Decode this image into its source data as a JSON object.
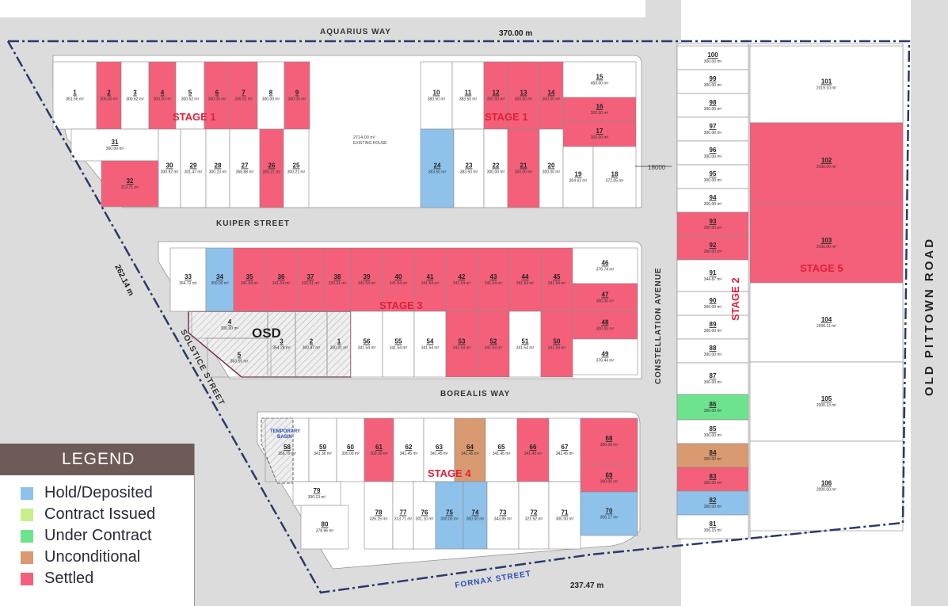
{
  "colors": {
    "Hold/Deposited": "#8ec2ea",
    "Contract Issued": "#c8f08a",
    "Under Contract": "#6ee38e",
    "Unconditional": "#d99a72",
    "Settled": "#f4607a",
    "Available": "#ffffff"
  },
  "legend": {
    "title": "LEGEND",
    "items": [
      {
        "label": "Hold/Deposited",
        "status": "Hold/Deposited"
      },
      {
        "label": "Contract Issued",
        "status": "Contract Issued"
      },
      {
        "label": "Under Contract",
        "status": "Under Contract"
      },
      {
        "label": "Unconditional",
        "status": "Unconditional"
      },
      {
        "label": "Settled",
        "status": "Settled"
      }
    ]
  },
  "streets": {
    "aquarius": "AQUARIUS WAY",
    "kuiper": "KUIPER     STREET",
    "borealis": "BOREALIS     WAY",
    "solstice": "SOLSTICE STREET",
    "fornax": "FORNAX    STREET",
    "constellation": "CONSTELLATION     AVENUE",
    "old_pittown": "OLD   PITTOWN   ROAD"
  },
  "dimensions": {
    "top": "370.00 m",
    "left": "262.14 m",
    "bottom": "237.47 m",
    "marker": "18000"
  },
  "labels": {
    "osd": "OSD",
    "basin_1": "TEMPORARY",
    "basin_2": "BASIN",
    "existing_area": "2714.00 m²",
    "existing_house": "EXISTING HOUSE"
  },
  "stages": [
    {
      "label": "STAGE 1"
    },
    {
      "label": "STAGE 1"
    },
    {
      "label": "STAGE 3"
    },
    {
      "label": "STAGE 4"
    },
    {
      "label": "STAGE 2"
    },
    {
      "label": "STAGE 5"
    }
  ],
  "lots": [
    {
      "num": "1",
      "area": "361.56 m²",
      "status": "Available"
    },
    {
      "num": "2",
      "area": "300.00 m²",
      "status": "Settled"
    },
    {
      "num": "3",
      "area": "300.62 m²",
      "status": "Available"
    },
    {
      "num": "4",
      "area": "300.00 m²",
      "status": "Settled"
    },
    {
      "num": "5",
      "area": "300.62 m²",
      "status": "Available"
    },
    {
      "num": "6",
      "area": "300.00 m²",
      "status": "Settled"
    },
    {
      "num": "7",
      "area": "300.62 m²",
      "status": "Settled"
    },
    {
      "num": "8",
      "area": "300.00 m²",
      "status": "Available"
    },
    {
      "num": "9",
      "area": "300.00 m²",
      "status": "Settled"
    },
    {
      "num": "10",
      "area": "383.50 m²",
      "status": "Available"
    },
    {
      "num": "11",
      "area": "383.50 m²",
      "status": "Available"
    },
    {
      "num": "12",
      "area": "300.00 m²",
      "status": "Settled"
    },
    {
      "num": "13",
      "area": "300.00 m²",
      "status": "Settled"
    },
    {
      "num": "14",
      "area": "300.00 m²",
      "status": "Settled"
    },
    {
      "num": "15",
      "area": "450.00 m²",
      "status": "Available"
    },
    {
      "num": "16",
      "area": "300.00 m²",
      "status": "Settled"
    },
    {
      "num": "17",
      "area": "300.00 m²",
      "status": "Settled"
    },
    {
      "num": "31",
      "area": "300.00 m²",
      "status": "Available"
    },
    {
      "num": "32",
      "area": "313.71 m²",
      "status": "Settled"
    },
    {
      "num": "30",
      "area": "300.92 m²",
      "status": "Available"
    },
    {
      "num": "29",
      "area": "301.47 m²",
      "status": "Available"
    },
    {
      "num": "28",
      "area": "300.23 m²",
      "status": "Available"
    },
    {
      "num": "27",
      "area": "368.88 m²",
      "status": "Available"
    },
    {
      "num": "26",
      "area": "300.21 m²",
      "status": "Settled"
    },
    {
      "num": "25",
      "area": "300.21 m²",
      "status": "Available"
    },
    {
      "num": "24",
      "area": "383.50 m²",
      "status": "Hold/Deposited"
    },
    {
      "num": "23",
      "area": "383.50 m²",
      "status": "Available"
    },
    {
      "num": "22",
      "area": "300.00 m²",
      "status": "Available"
    },
    {
      "num": "21",
      "area": "300.00 m²",
      "status": "Settled"
    },
    {
      "num": "20",
      "area": "300.00 m²",
      "status": "Available"
    },
    {
      "num": "19",
      "area": "304.62 m²",
      "status": "Available"
    },
    {
      "num": "18",
      "area": "372.05 m²",
      "status": "Available"
    },
    {
      "num": "33",
      "area": "364.72 m²",
      "status": "Available"
    },
    {
      "num": "34",
      "area": "300.00 m²",
      "status": "Hold/Deposited"
    },
    {
      "num": "35",
      "area": "341.54 m²",
      "status": "Settled"
    },
    {
      "num": "36",
      "area": "341.54 m²",
      "status": "Settled"
    },
    {
      "num": "37",
      "area": "320.01 m²",
      "status": "Settled"
    },
    {
      "num": "38",
      "area": "320.01 m²",
      "status": "Settled"
    },
    {
      "num": "39",
      "area": "341.54 m²",
      "status": "Settled"
    },
    {
      "num": "40",
      "area": "341.54 m²",
      "status": "Settled"
    },
    {
      "num": "41",
      "area": "341.54 m²",
      "status": "Settled"
    },
    {
      "num": "42",
      "area": "341.54 m²",
      "status": "Settled"
    },
    {
      "num": "43",
      "area": "341.54 m²",
      "status": "Settled"
    },
    {
      "num": "44",
      "area": "341.54 m²",
      "status": "Settled"
    },
    {
      "num": "45",
      "area": "341.54 m²",
      "status": "Settled"
    },
    {
      "num": "46",
      "area": "376.74 m²",
      "status": "Available"
    },
    {
      "num": "47",
      "area": "300.00 m²",
      "status": "Settled"
    },
    {
      "num": "48",
      "area": "300.00 m²",
      "status": "Settled"
    },
    {
      "num": "49",
      "area": "376.44 m²",
      "status": "Available"
    },
    {
      "num": "4",
      "area": "300.00 m²",
      "status": "OSD"
    },
    {
      "num": "5",
      "area": "363.55 m²",
      "status": "OSD"
    },
    {
      "num": "3",
      "area": "354.28 m²",
      "status": "OSD"
    },
    {
      "num": "2",
      "area": "300.87 m²",
      "status": "OSD"
    },
    {
      "num": "1",
      "area": "300.01 m²",
      "status": "OSD"
    },
    {
      "num": "56",
      "area": "341.54 m²",
      "status": "Available"
    },
    {
      "num": "55",
      "area": "341.54 m²",
      "status": "Available"
    },
    {
      "num": "54",
      "area": "341.54 m²",
      "status": "Available"
    },
    {
      "num": "53",
      "area": "341.54 m²",
      "status": "Settled"
    },
    {
      "num": "52",
      "area": "341.54 m²",
      "status": "Settled"
    },
    {
      "num": "51",
      "area": "341.54 m²",
      "status": "Available"
    },
    {
      "num": "50",
      "area": "341.54 m²",
      "status": "Settled"
    },
    {
      "num": "58",
      "area": "356.79 m²",
      "status": "Basin"
    },
    {
      "num": "59",
      "area": "341.36 m²",
      "status": "Available"
    },
    {
      "num": "60",
      "area": "300.00 m²",
      "status": "Available"
    },
    {
      "num": "61",
      "area": "300.00 m²",
      "status": "Settled"
    },
    {
      "num": "62",
      "area": "341.45 m²",
      "status": "Available"
    },
    {
      "num": "63",
      "area": "341.45 m²",
      "status": "Available"
    },
    {
      "num": "64",
      "area": "341.45 m²",
      "status": "Unconditional"
    },
    {
      "num": "65",
      "area": "341.45 m²",
      "status": "Available"
    },
    {
      "num": "66",
      "area": "341.45 m²",
      "status": "Settled"
    },
    {
      "num": "67",
      "area": "341.45 m²",
      "status": "Available"
    },
    {
      "num": "68",
      "area": "300.00 m²",
      "status": "Settled"
    },
    {
      "num": "69",
      "area": "300.00 m²",
      "status": "Settled"
    },
    {
      "num": "79",
      "area": "300.13 m²",
      "status": "Available"
    },
    {
      "num": "80",
      "area": "378.96 m²",
      "status": "Available"
    },
    {
      "num": "78",
      "area": "326.25 m²",
      "status": "Available"
    },
    {
      "num": "77",
      "area": "313.71 m²",
      "status": "Available"
    },
    {
      "num": "76",
      "area": "301.10 m²",
      "status": "Available"
    },
    {
      "num": "75",
      "area": "300.00 m²",
      "status": "Hold/Deposited"
    },
    {
      "num": "74",
      "area": "300.00 m²",
      "status": "Hold/Deposited"
    },
    {
      "num": "73",
      "area": "343.85 m²",
      "status": "Available"
    },
    {
      "num": "72",
      "area": "321.92 m²",
      "status": "Available"
    },
    {
      "num": "71",
      "area": "300.00 m²",
      "status": "Available"
    },
    {
      "num": "70",
      "area": "306.17 m²",
      "status": "Hold/Deposited"
    },
    {
      "num": "100",
      "area": "300.00 m²",
      "status": "Available"
    },
    {
      "num": "99",
      "area": "300.00 m²",
      "status": "Available"
    },
    {
      "num": "98",
      "area": "300.00 m²",
      "status": "Available"
    },
    {
      "num": "97",
      "area": "300.00 m²",
      "status": "Available"
    },
    {
      "num": "96",
      "area": "300.00 m²",
      "status": "Available"
    },
    {
      "num": "95",
      "area": "300.00 m²",
      "status": "Available"
    },
    {
      "num": "94",
      "area": "300.00 m²",
      "status": "Available"
    },
    {
      "num": "93",
      "area": "300.00 m²",
      "status": "Settled"
    },
    {
      "num": "92",
      "area": "300.00 m²",
      "status": "Settled"
    },
    {
      "num": "91",
      "area": "344.87 m²",
      "status": "Available"
    },
    {
      "num": "90",
      "area": "300.00 m²",
      "status": "Available"
    },
    {
      "num": "89",
      "area": "300.00 m²",
      "status": "Available"
    },
    {
      "num": "88",
      "area": "300.00 m²",
      "status": "Available"
    },
    {
      "num": "87",
      "area": "300.00 m²",
      "status": "Available"
    },
    {
      "num": "86",
      "area": "300.00 m²",
      "status": "Under Contract"
    },
    {
      "num": "85",
      "area": "300.00 m²",
      "status": "Available"
    },
    {
      "num": "84",
      "area": "300.00 m²",
      "status": "Unconditional"
    },
    {
      "num": "83",
      "area": "300.00 m²",
      "status": "Settled"
    },
    {
      "num": "82",
      "area": "300.00 m²",
      "status": "Hold/Deposited"
    },
    {
      "num": "81",
      "area": "306.15 m²",
      "status": "Available"
    },
    {
      "num": "101",
      "area": "2019.10 m²",
      "status": "Available"
    },
    {
      "num": "102",
      "area": "2030.00 m²",
      "status": "Settled"
    },
    {
      "num": "103",
      "area": "2030.00 m²",
      "status": "Settled"
    },
    {
      "num": "104",
      "area": "2000.11 m²",
      "status": "Available"
    },
    {
      "num": "105",
      "area": "2000.13 m²",
      "status": "Available"
    },
    {
      "num": "106",
      "area": "2000.00 m²",
      "status": "Available"
    }
  ]
}
